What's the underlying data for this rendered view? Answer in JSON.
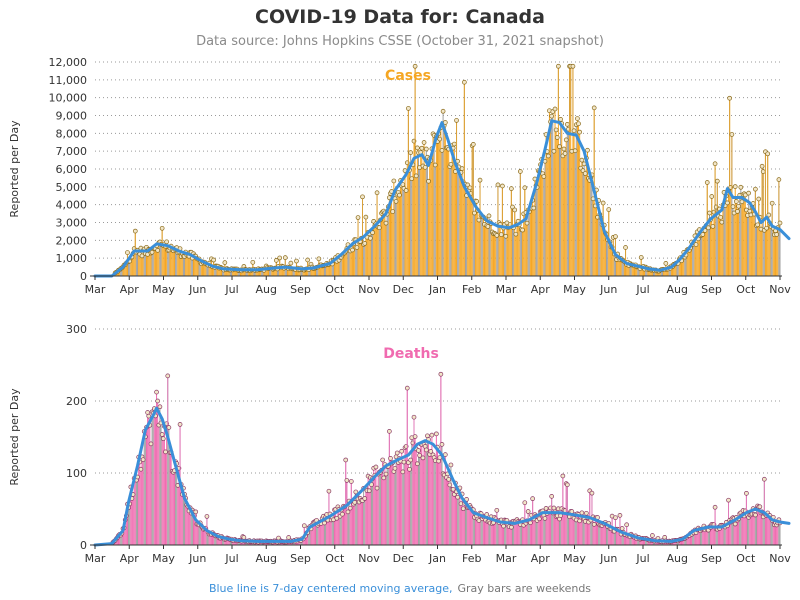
{
  "title": "COVID-19 Data for: Canada",
  "subtitle": "Data source: Johns Hopkins CSSE (October 31, 2021 snapshot)",
  "footnote": {
    "part1": "Blue line is 7-day centered moving average,",
    "part2": "Gray bars are weekends",
    "part1_color": "#3a8fd9",
    "part2_color": "#777777"
  },
  "colors": {
    "cases_bar": "#f5a623",
    "cases_outline": "#8a6a1a",
    "deaths_bar": "#f06bb0",
    "deaths_outline": "#8a3a66",
    "weekend_bar": "#a0a0a0",
    "moving_average": "#3a8fd9",
    "cases_title": "#f5a623",
    "deaths_title": "#f06bb0"
  },
  "chart_data": [
    {
      "type": "bar",
      "title": "Cases",
      "xlabel": "",
      "ylabel": "Reported per Day",
      "ylim": [
        0,
        12000
      ],
      "yticks": [
        "0",
        "1,000",
        "2,000",
        "3,000",
        "4,000",
        "5,000",
        "6,000",
        "7,000",
        "8,000",
        "9,000",
        "10,000",
        "11,000",
        "12,000"
      ],
      "xticks": [
        "Mar",
        "Apr",
        "May",
        "Jun",
        "Jul",
        "Aug",
        "Sep",
        "Oct",
        "Nov",
        "Dec",
        "Jan",
        "Feb",
        "Mar",
        "Apr",
        "May",
        "Jun",
        "Jul",
        "Aug",
        "Sep",
        "Oct",
        "Nov"
      ],
      "grid": "horizontal dotted",
      "moving_average_points": [
        [
          0,
          0
        ],
        [
          15,
          0
        ],
        [
          25,
          500
        ],
        [
          35,
          1400
        ],
        [
          47,
          1400
        ],
        [
          55,
          1800
        ],
        [
          65,
          1700
        ],
        [
          75,
          1400
        ],
        [
          85,
          1200
        ],
        [
          95,
          850
        ],
        [
          105,
          550
        ],
        [
          115,
          400
        ],
        [
          130,
          350
        ],
        [
          145,
          350
        ],
        [
          160,
          450
        ],
        [
          170,
          500
        ],
        [
          185,
          400
        ],
        [
          195,
          450
        ],
        [
          210,
          700
        ],
        [
          220,
          1200
        ],
        [
          230,
          1800
        ],
        [
          240,
          2200
        ],
        [
          250,
          2800
        ],
        [
          260,
          3500
        ],
        [
          268,
          4800
        ],
        [
          278,
          5700
        ],
        [
          285,
          6600
        ],
        [
          292,
          6800
        ],
        [
          298,
          6200
        ],
        [
          305,
          7800
        ],
        [
          310,
          8600
        ],
        [
          315,
          7700
        ],
        [
          322,
          6300
        ],
        [
          330,
          5000
        ],
        [
          340,
          3900
        ],
        [
          350,
          3100
        ],
        [
          360,
          2800
        ],
        [
          370,
          2700
        ],
        [
          378,
          2900
        ],
        [
          385,
          3200
        ],
        [
          395,
          5300
        ],
        [
          402,
          7100
        ],
        [
          408,
          8700
        ],
        [
          415,
          8600
        ],
        [
          422,
          8000
        ],
        [
          430,
          7900
        ],
        [
          437,
          7000
        ],
        [
          445,
          5000
        ],
        [
          455,
          2500
        ],
        [
          465,
          1200
        ],
        [
          475,
          700
        ],
        [
          485,
          550
        ],
        [
          495,
          400
        ],
        [
          505,
          320
        ],
        [
          515,
          500
        ],
        [
          522,
          900
        ],
        [
          530,
          1500
        ],
        [
          540,
          2400
        ],
        [
          550,
          3200
        ],
        [
          560,
          3700
        ],
        [
          565,
          4900
        ],
        [
          570,
          4400
        ],
        [
          578,
          4400
        ],
        [
          585,
          4100
        ],
        [
          590,
          3600
        ],
        [
          595,
          3000
        ],
        [
          600,
          3300
        ],
        [
          605,
          2800
        ],
        [
          612,
          2600
        ],
        [
          620,
          2100
        ]
      ]
    },
    {
      "type": "bar",
      "title": "Deaths",
      "xlabel": "",
      "ylabel": "Reported per Day",
      "ylim": [
        0,
        300
      ],
      "yticks": [
        "0",
        "100",
        "200",
        "300"
      ],
      "xticks": [
        "Mar",
        "Apr",
        "May",
        "Jun",
        "Jul",
        "Aug",
        "Sep",
        "Oct",
        "Nov",
        "Dec",
        "Jan",
        "Feb",
        "Mar",
        "Apr",
        "May",
        "Jun",
        "Jul",
        "Aug",
        "Sep",
        "Oct",
        "Nov"
      ],
      "grid": "horizontal dotted",
      "moving_average_points": [
        [
          0,
          0
        ],
        [
          15,
          2
        ],
        [
          25,
          20
        ],
        [
          30,
          60
        ],
        [
          38,
          110
        ],
        [
          45,
          160
        ],
        [
          52,
          180
        ],
        [
          55,
          190
        ],
        [
          60,
          175
        ],
        [
          65,
          150
        ],
        [
          72,
          110
        ],
        [
          80,
          65
        ],
        [
          90,
          35
        ],
        [
          100,
          20
        ],
        [
          110,
          12
        ],
        [
          120,
          8
        ],
        [
          130,
          6
        ],
        [
          145,
          5
        ],
        [
          160,
          5
        ],
        [
          175,
          5
        ],
        [
          185,
          8
        ],
        [
          192,
          25
        ],
        [
          198,
          30
        ],
        [
          210,
          40
        ],
        [
          225,
          55
        ],
        [
          238,
          75
        ],
        [
          250,
          95
        ],
        [
          260,
          110
        ],
        [
          270,
          118
        ],
        [
          280,
          125
        ],
        [
          288,
          140
        ],
        [
          295,
          145
        ],
        [
          302,
          140
        ],
        [
          310,
          125
        ],
        [
          320,
          90
        ],
        [
          328,
          65
        ],
        [
          338,
          45
        ],
        [
          350,
          38
        ],
        [
          362,
          32
        ],
        [
          375,
          30
        ],
        [
          388,
          35
        ],
        [
          400,
          45
        ],
        [
          415,
          45
        ],
        [
          428,
          42
        ],
        [
          442,
          38
        ],
        [
          455,
          30
        ],
        [
          470,
          18
        ],
        [
          485,
          10
        ],
        [
          500,
          6
        ],
        [
          515,
          5
        ],
        [
          525,
          8
        ],
        [
          535,
          20
        ],
        [
          548,
          25
        ],
        [
          560,
          25
        ],
        [
          572,
          35
        ],
        [
          582,
          45
        ],
        [
          590,
          50
        ],
        [
          598,
          45
        ],
        [
          605,
          35
        ],
        [
          612,
          32
        ],
        [
          620,
          30
        ]
      ]
    }
  ]
}
